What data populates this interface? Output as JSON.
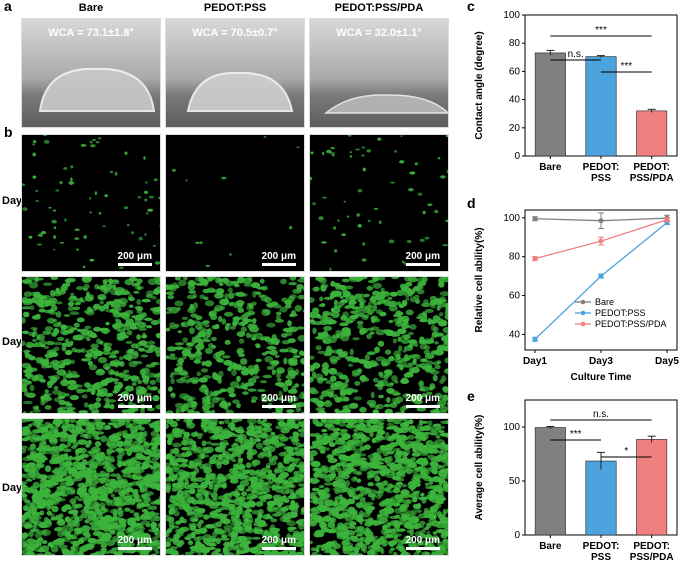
{
  "panel_labels": {
    "a": "a",
    "b": "b",
    "c": "c",
    "d": "d",
    "e": "e"
  },
  "columns": [
    "Bare",
    "PEDOT:PSS",
    "PEDOT:PSS/PDA"
  ],
  "wca": [
    "WCA = 73.1±1.8°",
    "WCA = 70.5±0.7°",
    "WCA = 32.0±1.1°"
  ],
  "rows": [
    "Day1",
    "Day3",
    "Day5"
  ],
  "scale_bar": "200 μm",
  "colors": {
    "bare": "#808080",
    "pedot": "#4ca3dd",
    "pda": "#f08080",
    "cells": "#3cb43c"
  },
  "chart_data": [
    {
      "type": "bar",
      "panel": "c",
      "categories": [
        "Bare",
        "PEDOT:\nPSS",
        "PEDOT:\nPSS/PDA"
      ],
      "values": [
        73.1,
        70.5,
        32.0
      ],
      "errors": [
        1.8,
        0.7,
        1.1
      ],
      "ylabel": "Contact angle (degree)",
      "ylim": [
        0,
        100
      ],
      "yticks": [
        0,
        20,
        40,
        60,
        80,
        100
      ],
      "significance": [
        {
          "from": 0,
          "to": 2,
          "label": "***"
        },
        {
          "from": 0,
          "to": 1,
          "label": "n.s."
        },
        {
          "from": 1,
          "to": 2,
          "label": "***"
        }
      ]
    },
    {
      "type": "line",
      "panel": "d",
      "x": [
        "Day1",
        "Day3",
        "Day5"
      ],
      "xlabel": "Culture Time",
      "ylabel": "Relative cell ability(%)",
      "ylim": [
        32,
        104
      ],
      "yticks": [
        40,
        60,
        80,
        100
      ],
      "legend": "lower-right",
      "series": [
        {
          "name": "Bare",
          "values": [
            99.5,
            98.5,
            99.8
          ],
          "errors": [
            1,
            4,
            1.5
          ],
          "color": "#808080"
        },
        {
          "name": "PEDOT:PSS",
          "values": [
            37.5,
            70,
            97.5
          ],
          "errors": [
            1,
            1,
            1
          ],
          "color": "#4ca3dd"
        },
        {
          "name": "PEDOT:PSS/PDA",
          "values": [
            79,
            88,
            99
          ],
          "errors": [
            1,
            2,
            1
          ],
          "color": "#f08080"
        }
      ]
    },
    {
      "type": "bar",
      "panel": "e",
      "categories": [
        "Bare",
        "PEDOT:\nPSS",
        "PEDOT:\nPSS/PDA"
      ],
      "values": [
        99.5,
        68.5,
        88.5
      ],
      "errors": [
        1,
        8,
        3
      ],
      "ylabel": "Average cell ability(%)",
      "ylim": [
        0,
        125
      ],
      "yticks": [
        0,
        50,
        100
      ],
      "significance": [
        {
          "from": 0,
          "to": 2,
          "label": "n.s."
        },
        {
          "from": 0,
          "to": 1,
          "label": "***"
        },
        {
          "from": 1,
          "to": 2,
          "label": "*"
        }
      ]
    }
  ]
}
